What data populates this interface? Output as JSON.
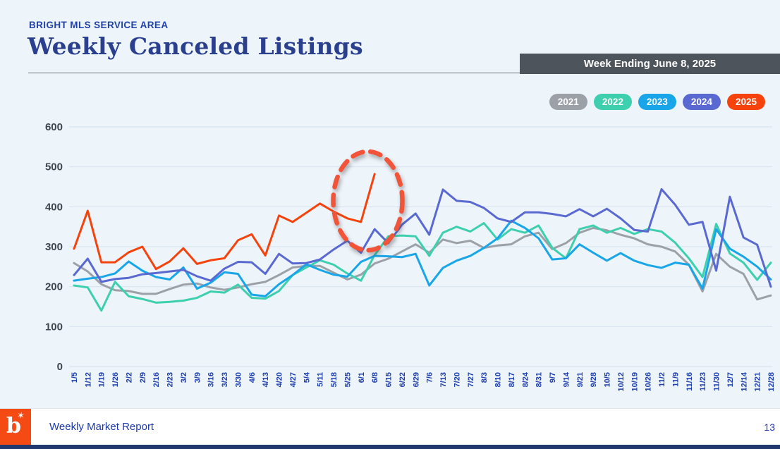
{
  "page": {
    "eyebrow": "BRIGHT MLS SERVICE AREA",
    "title": "Weekly Canceled Listings",
    "banner": "Week Ending June 8, 2025"
  },
  "colors": {
    "background": "#edf4fa",
    "banner_bg": "#4d545c",
    "title_text": "#2a3f8e",
    "gridline": "#d9e4f0",
    "y_axis_text": "#3e464e",
    "x_axis_text": "#1d3fae",
    "annotation": "#f2543a",
    "logo_bg": "#f54a14",
    "footer_text": "#1c3bad"
  },
  "chart_data": {
    "type": "line",
    "title": "Weekly Canceled Listings",
    "xlabel": "",
    "ylabel": "",
    "ylim": [
      0,
      600
    ],
    "yticks": [
      0,
      100,
      200,
      300,
      400,
      500,
      600
    ],
    "grid": true,
    "legend_position": "top-right",
    "categories": [
      "1/5",
      "1/12",
      "1/19",
      "1/26",
      "2/2",
      "2/9",
      "2/16",
      "2/23",
      "3/2",
      "3/9",
      "3/16",
      "3/23",
      "3/30",
      "4/6",
      "4/13",
      "4/20",
      "4/27",
      "5/4",
      "5/11",
      "5/18",
      "5/25",
      "6/1",
      "6/8",
      "6/15",
      "6/22",
      "6/29",
      "7/6",
      "7/13",
      "7/20",
      "7/27",
      "8/3",
      "8/10",
      "8/17",
      "8/24",
      "8/31",
      "9/7",
      "9/14",
      "9/21",
      "9/28",
      "10/5",
      "10/12",
      "10/19",
      "10/26",
      "11/2",
      "11/9",
      "11/16",
      "11/23",
      "11/30",
      "12/7",
      "12/14",
      "12/21",
      "12/28"
    ],
    "series": [
      {
        "name": "2021",
        "color": "#9ca1a7",
        "values": [
          259,
          238,
          206,
          191,
          189,
          182,
          182,
          194,
          205,
          208,
          198,
          192,
          198,
          206,
          212,
          229,
          248,
          252,
          252,
          235,
          218,
          230,
          258,
          270,
          288,
          306,
          285,
          318,
          309,
          315,
          297,
          303,
          306,
          326,
          335,
          294,
          309,
          335,
          347,
          341,
          330,
          321,
          306,
          300,
          288,
          255,
          188,
          282,
          250,
          232,
          168,
          178
        ]
      },
      {
        "name": "2022",
        "color": "#3ed0ae",
        "values": [
          203,
          198,
          140,
          212,
          176,
          169,
          160,
          162,
          165,
          172,
          188,
          185,
          205,
          172,
          170,
          189,
          229,
          248,
          266,
          255,
          233,
          215,
          279,
          326,
          328,
          326,
          277,
          335,
          350,
          338,
          359,
          318,
          344,
          335,
          353,
          297,
          271,
          344,
          353,
          335,
          347,
          332,
          344,
          338,
          310,
          271,
          224,
          357,
          283,
          260,
          217,
          260
        ]
      },
      {
        "name": "2023",
        "color": "#18a6e9",
        "values": [
          215,
          220,
          224,
          233,
          263,
          240,
          224,
          218,
          248,
          195,
          210,
          236,
          232,
          180,
          176,
          206,
          229,
          256,
          242,
          230,
          225,
          262,
          277,
          276,
          274,
          282,
          203,
          247,
          265,
          277,
          297,
          321,
          365,
          347,
          321,
          268,
          271,
          306,
          285,
          265,
          284,
          265,
          254,
          247,
          260,
          255,
          195,
          344,
          295,
          275,
          250,
          218
        ]
      },
      {
        "name": "2024",
        "color": "#5a69d2",
        "values": [
          229,
          270,
          212,
          219,
          222,
          231,
          234,
          238,
          242,
          226,
          215,
          245,
          262,
          261,
          232,
          282,
          258,
          259,
          268,
          293,
          315,
          285,
          344,
          309,
          355,
          383,
          330,
          443,
          415,
          412,
          397,
          371,
          362,
          386,
          386,
          382,
          376,
          394,
          376,
          395,
          371,
          342,
          338,
          444,
          405,
          355,
          362,
          240,
          425,
          323,
          305,
          200
        ]
      },
      {
        "name": "2025",
        "color": "#f6430d",
        "values": [
          295,
          390,
          261,
          261,
          286,
          300,
          244,
          263,
          296,
          257,
          266,
          271,
          316,
          331,
          278,
          378,
          362,
          385,
          408,
          388,
          371,
          362,
          482
        ]
      }
    ],
    "annotation": {
      "type": "dashed-ellipse",
      "description": "Dashed orange circle highlighting the 2025 spike for weeks 6/1-6/8",
      "center_between_categories": [
        "6/1",
        "6/8"
      ],
      "center_value": 415,
      "color": "#f2543a"
    }
  },
  "footer": {
    "report_title": "Weekly Market Report",
    "page_number": "13",
    "logo_text": "b"
  }
}
